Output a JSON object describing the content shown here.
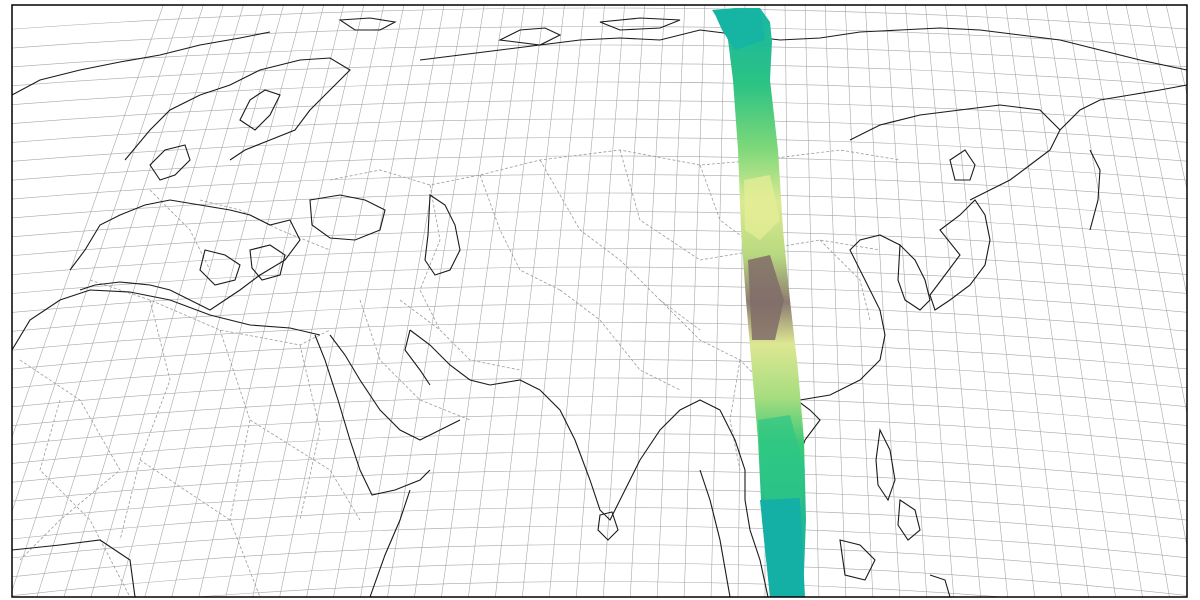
{
  "map": {
    "projection": "equidistant-conic",
    "colors": {
      "background": "#ffffff",
      "graticule": "#a8a8a8",
      "coastline": "#1a1a1a",
      "borders": "#9c9c9c",
      "frame": "#000000",
      "swath_ocean": "#14b0a6",
      "swath_lowland": "#22c777",
      "swath_plain": "#8fdc7f",
      "swath_upland": "#e8ef96",
      "swath_mountain": "#7e6a6a"
    },
    "swath": {
      "description_icon": "elevation-swath",
      "colormap": [
        "#14b0a6",
        "#22c777",
        "#8fdc7f",
        "#e8ef96",
        "#7e6a6a"
      ]
    },
    "labels": []
  }
}
